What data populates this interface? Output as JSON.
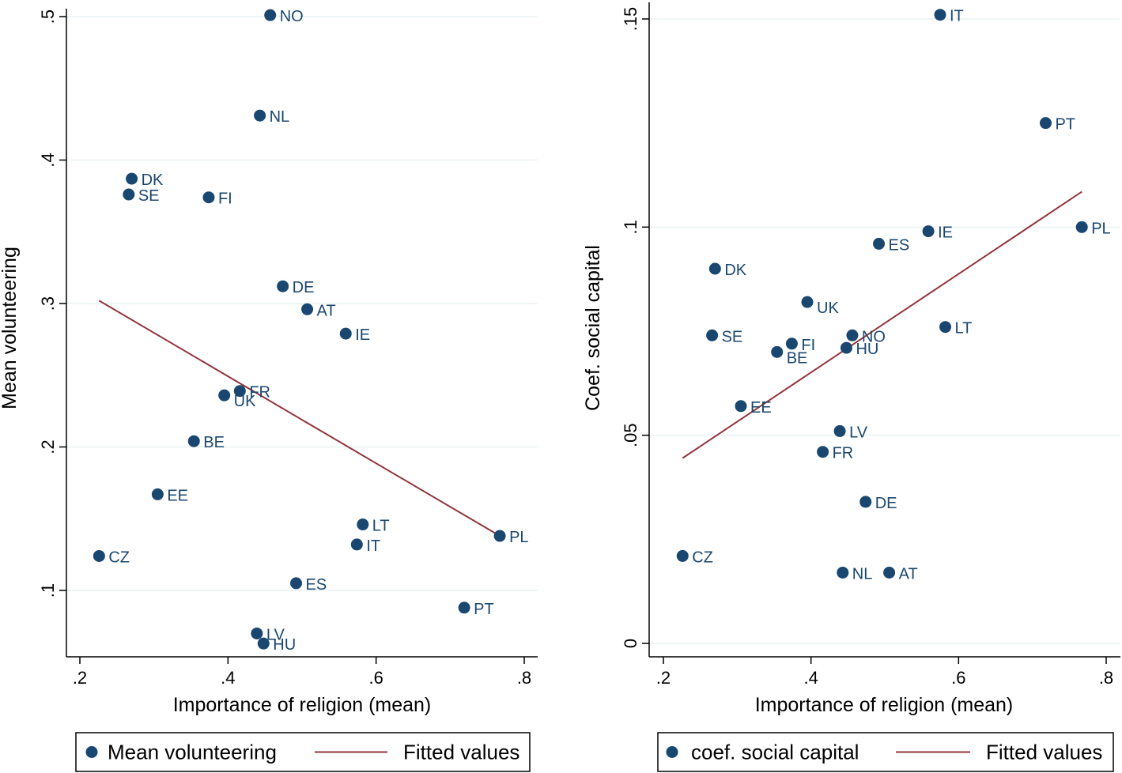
{
  "chart_data": [
    {
      "type": "scatter",
      "title": "",
      "xlabel": "Importance of religion (mean)",
      "ylabel": "Mean volunteering",
      "xlim": [
        0.2,
        0.8
      ],
      "ylim": [
        0.05,
        0.5
      ],
      "xticks": [
        {
          "v": 0.2,
          "label": ".2"
        },
        {
          "v": 0.4,
          "label": ".4"
        },
        {
          "v": 0.6,
          "label": ".6"
        },
        {
          "v": 0.8,
          "label": ".8"
        }
      ],
      "yticks": [
        {
          "v": 0.1,
          "label": ".1"
        },
        {
          "v": 0.2,
          "label": ".2"
        },
        {
          "v": 0.3,
          "label": ".3"
        },
        {
          "v": 0.4,
          "label": ".4"
        },
        {
          "v": 0.5,
          "label": ".5"
        }
      ],
      "grid": true,
      "series": [
        {
          "name": "Mean volunteering",
          "kind": "scatter",
          "color": "#1a476f",
          "points": [
            {
              "label": "NO",
              "x": 0.457,
              "y": 0.501
            },
            {
              "label": "NL",
              "x": 0.443,
              "y": 0.431
            },
            {
              "label": "DK",
              "x": 0.27,
              "y": 0.387
            },
            {
              "label": "SE",
              "x": 0.266,
              "y": 0.376
            },
            {
              "label": "FI",
              "x": 0.374,
              "y": 0.374
            },
            {
              "label": "DE",
              "x": 0.474,
              "y": 0.312
            },
            {
              "label": "AT",
              "x": 0.507,
              "y": 0.296
            },
            {
              "label": "IE",
              "x": 0.559,
              "y": 0.279
            },
            {
              "label": "FR",
              "x": 0.416,
              "y": 0.239
            },
            {
              "label": "UK",
              "x": 0.395,
              "y": 0.236
            },
            {
              "label": "BE",
              "x": 0.354,
              "y": 0.204
            },
            {
              "label": "EE",
              "x": 0.305,
              "y": 0.167
            },
            {
              "label": "CZ",
              "x": 0.226,
              "y": 0.124
            },
            {
              "label": "LT",
              "x": 0.582,
              "y": 0.146
            },
            {
              "label": "IT",
              "x": 0.574,
              "y": 0.132
            },
            {
              "label": "PL",
              "x": 0.767,
              "y": 0.138
            },
            {
              "label": "ES",
              "x": 0.492,
              "y": 0.105
            },
            {
              "label": "PT",
              "x": 0.719,
              "y": 0.088
            },
            {
              "label": "LV",
              "x": 0.439,
              "y": 0.07
            },
            {
              "label": "HU",
              "x": 0.448,
              "y": 0.063
            }
          ]
        },
        {
          "name": "Fitted values",
          "kind": "line",
          "color": "#90353b",
          "points": [
            {
              "x": 0.226,
              "y": 0.302
            },
            {
              "x": 0.767,
              "y": 0.138
            }
          ]
        }
      ],
      "legend": [
        "Mean volunteering",
        "Fitted values"
      ]
    },
    {
      "type": "scatter",
      "title": "",
      "xlabel": "Importance of religion (mean)",
      "ylabel": "Coef. social capital",
      "xlim": [
        0.2,
        0.8
      ],
      "ylim": [
        0,
        0.15
      ],
      "xticks": [
        {
          "v": 0.2,
          "label": ".2"
        },
        {
          "v": 0.4,
          "label": ".4"
        },
        {
          "v": 0.6,
          "label": ".6"
        },
        {
          "v": 0.8,
          "label": ".8"
        }
      ],
      "yticks": [
        {
          "v": 0,
          "label": "0"
        },
        {
          "v": 0.05,
          "label": ".05"
        },
        {
          "v": 0.1,
          "label": ".1"
        },
        {
          "v": 0.15,
          "label": ".15"
        }
      ],
      "grid": true,
      "series": [
        {
          "name": "coef. social capital",
          "kind": "scatter",
          "color": "#1a476f",
          "points": [
            {
              "label": "IT",
              "x": 0.575,
              "y": 0.151
            },
            {
              "label": "PT",
              "x": 0.718,
              "y": 0.125
            },
            {
              "label": "PL",
              "x": 0.767,
              "y": 0.1
            },
            {
              "label": "IE",
              "x": 0.559,
              "y": 0.099
            },
            {
              "label": "ES",
              "x": 0.492,
              "y": 0.096
            },
            {
              "label": "DK",
              "x": 0.27,
              "y": 0.09
            },
            {
              "label": "UK",
              "x": 0.395,
              "y": 0.082
            },
            {
              "label": "LT",
              "x": 0.582,
              "y": 0.076
            },
            {
              "label": "SE",
              "x": 0.266,
              "y": 0.074
            },
            {
              "label": "NO",
              "x": 0.456,
              "y": 0.074
            },
            {
              "label": "FI",
              "x": 0.374,
              "y": 0.072
            },
            {
              "label": "HU",
              "x": 0.448,
              "y": 0.071
            },
            {
              "label": "BE",
              "x": 0.354,
              "y": 0.07
            },
            {
              "label": "EE",
              "x": 0.305,
              "y": 0.057
            },
            {
              "label": "LV",
              "x": 0.439,
              "y": 0.051
            },
            {
              "label": "FR",
              "x": 0.416,
              "y": 0.046
            },
            {
              "label": "DE",
              "x": 0.474,
              "y": 0.034
            },
            {
              "label": "CZ",
              "x": 0.226,
              "y": 0.021
            },
            {
              "label": "NL",
              "x": 0.443,
              "y": 0.017
            },
            {
              "label": "AT",
              "x": 0.506,
              "y": 0.017
            }
          ]
        },
        {
          "name": "Fitted values",
          "kind": "line",
          "color": "#90353b",
          "points": [
            {
              "x": 0.226,
              "y": 0.0445
            },
            {
              "x": 0.767,
              "y": 0.1085
            }
          ]
        }
      ],
      "legend": [
        "coef. social capital",
        "Fitted values"
      ]
    }
  ]
}
